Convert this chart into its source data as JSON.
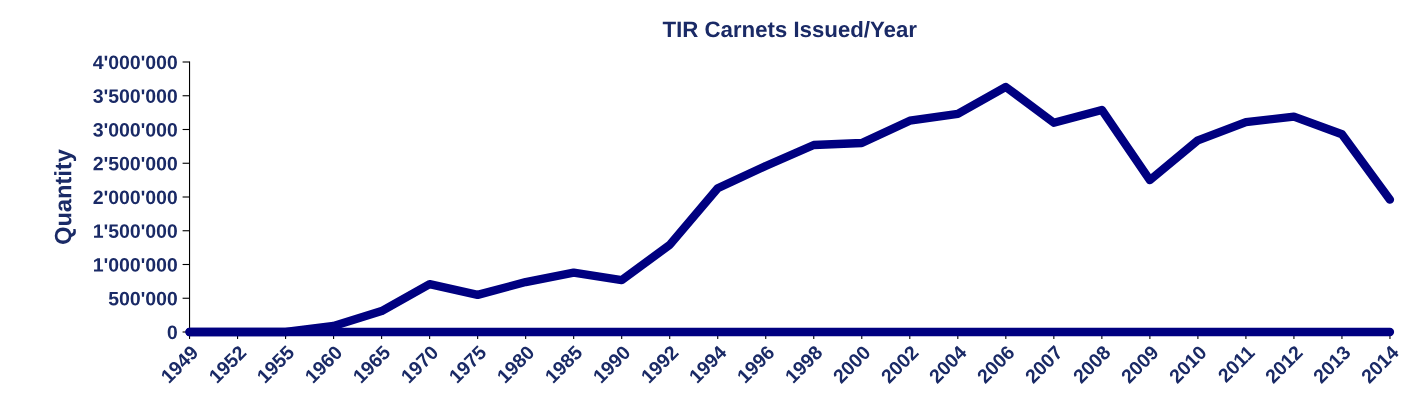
{
  "chart_data": {
    "type": "line",
    "title": "TIR Carnets Issued/Year",
    "ylabel": "Quantity",
    "categories": [
      "1949",
      "1952",
      "1955",
      "1960",
      "1965",
      "1970",
      "1975",
      "1980",
      "1985",
      "1990",
      "1992",
      "1994",
      "1996",
      "1998",
      "2000",
      "2002",
      "2004",
      "2006",
      "2007",
      "2008",
      "2009",
      "2010",
      "2011",
      "2012",
      "2013",
      "2014"
    ],
    "series": [
      {
        "color": "#000080",
        "values": [
          0,
          0,
          0,
          90000,
          310000,
          710000,
          550000,
          740000,
          880000,
          770000,
          1290000,
          2130000,
          2460000,
          2770000,
          2800000,
          3130000,
          3230000,
          3630000,
          3100000,
          3290000,
          2250000,
          2840000,
          3110000,
          3190000,
          2930000,
          1960000
        ]
      },
      {
        "color": "#000080",
        "values": [
          0,
          0,
          0,
          0,
          0,
          0,
          0,
          0,
          0,
          0,
          0,
          0,
          0,
          0,
          0,
          0,
          0,
          0,
          0,
          0,
          0,
          0,
          0,
          0,
          0,
          0
        ]
      }
    ],
    "ylim": [
      0,
      4000000
    ],
    "yticks": [
      {
        "value": 0,
        "label": "0"
      },
      {
        "value": 500000,
        "label": "500'000"
      },
      {
        "value": 1000000,
        "label": "1'000'000"
      },
      {
        "value": 1500000,
        "label": "1'500'000"
      },
      {
        "value": 2000000,
        "label": "2'000'000"
      },
      {
        "value": 2500000,
        "label": "2'500'000"
      },
      {
        "value": 3000000,
        "label": "3'000'000"
      },
      {
        "value": 3500000,
        "label": "3'500'000"
      },
      {
        "value": 4000000,
        "label": "4'000'000"
      }
    ],
    "grid": false,
    "marker": "none",
    "line_style": "solid"
  }
}
